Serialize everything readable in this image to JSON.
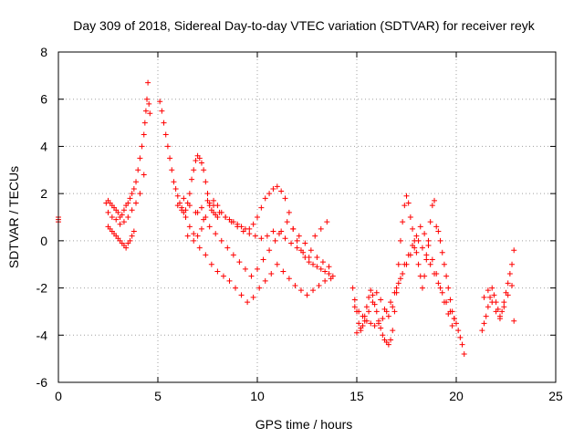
{
  "chart_data": {
    "type": "scatter",
    "title": "Day 309 of 2018, Sidereal Day-to-day VTEC variation (SDTVAR) for receiver reyk",
    "xlabel": "GPS time / hours",
    "ylabel": "SDTVAR / TECUs",
    "xlim": [
      0,
      25
    ],
    "ylim": [
      -6,
      8
    ],
    "x_ticks": [
      0,
      5,
      10,
      15,
      20,
      25
    ],
    "x_tick_labels": [
      "0",
      "5",
      "10",
      "15",
      "20",
      "25"
    ],
    "y_ticks": [
      -6,
      -4,
      -2,
      0,
      2,
      4,
      6,
      8
    ],
    "y_tick_labels": [
      "-6",
      "-4",
      "-2",
      "0",
      "2",
      "4",
      "6",
      "8"
    ],
    "grid": true,
    "marker": "+",
    "color": "#ff0000",
    "series": [
      {
        "name": "SDTVAR",
        "x": [
          0.0,
          0.0,
          0.0,
          2.4,
          2.5,
          2.6,
          2.7,
          2.8,
          2.9,
          3.0,
          3.1,
          3.2,
          3.3,
          3.4,
          3.5,
          3.6,
          3.7,
          3.8,
          3.9,
          4.0,
          4.1,
          4.2,
          4.3,
          4.35,
          4.4,
          4.45,
          4.5,
          4.55,
          4.6,
          2.5,
          2.6,
          2.7,
          2.8,
          2.9,
          3.0,
          3.1,
          3.2,
          3.3,
          3.4,
          3.5,
          3.6,
          3.7,
          3.8,
          2.5,
          2.7,
          2.9,
          3.1,
          3.3,
          3.5,
          3.7,
          3.9,
          4.1,
          4.3,
          5.1,
          5.2,
          5.3,
          5.4,
          5.5,
          5.6,
          5.7,
          5.8,
          5.9,
          6.0,
          6.1,
          6.2,
          6.3,
          6.4,
          6.5,
          6.6,
          6.7,
          6.8,
          6.9,
          7.0,
          7.1,
          7.2,
          7.3,
          7.4,
          7.5,
          7.6,
          7.7,
          7.8,
          7.9,
          8.0,
          6.0,
          6.2,
          6.4,
          6.6,
          6.8,
          7.0,
          7.2,
          7.4,
          7.6,
          7.8,
          8.0,
          8.2,
          8.4,
          8.6,
          8.8,
          9.0,
          9.2,
          9.4,
          9.6,
          9.8,
          10.0,
          10.2,
          10.4,
          10.6,
          10.8,
          11.0,
          11.2,
          11.4,
          11.6,
          11.8,
          12.0,
          12.2,
          12.4,
          12.6,
          12.8,
          13.0,
          13.2,
          13.4,
          13.6,
          13.8,
          6.5,
          6.8,
          7.1,
          7.4,
          7.7,
          8.0,
          8.3,
          8.6,
          8.9,
          9.2,
          9.5,
          9.8,
          10.1,
          10.4,
          10.7,
          11.0,
          11.3,
          11.6,
          11.9,
          12.2,
          12.5,
          12.8,
          13.1,
          13.4,
          13.7,
          7.0,
          7.3,
          7.6,
          7.9,
          8.2,
          8.5,
          8.8,
          9.1,
          9.4,
          9.7,
          10.0,
          10.3,
          10.6,
          10.9,
          11.2,
          11.5,
          11.8,
          12.1,
          12.4,
          12.7,
          13.0,
          13.3,
          13.6,
          6.3,
          6.6,
          6.9,
          7.2,
          7.5,
          7.8,
          8.1,
          8.4,
          8.7,
          9.0,
          9.3,
          9.6,
          9.9,
          10.2,
          10.5,
          10.8,
          11.1,
          11.4,
          11.7,
          12.0,
          12.3,
          12.6,
          12.9,
          13.2,
          13.5,
          14.8,
          14.9,
          15.0,
          15.1,
          15.2,
          15.3,
          15.4,
          15.5,
          15.6,
          15.7,
          15.8,
          15.9,
          16.0,
          16.1,
          16.2,
          16.3,
          16.4,
          16.5,
          16.6,
          16.7,
          16.8,
          16.9,
          17.0,
          17.1,
          17.2,
          17.3,
          17.4,
          17.5,
          17.6,
          17.7,
          17.8,
          17.9,
          18.0,
          18.1,
          18.2,
          18.3,
          18.4,
          18.5,
          18.6,
          18.7,
          18.8,
          18.9,
          19.0,
          19.1,
          19.2,
          19.3,
          19.4,
          19.5,
          19.6,
          19.7,
          19.8,
          19.9,
          20.0,
          20.1,
          20.2,
          20.3,
          20.4,
          14.9,
          15.1,
          15.3,
          15.5,
          15.7,
          15.9,
          16.1,
          16.3,
          16.5,
          16.7,
          16.9,
          17.1,
          17.3,
          17.5,
          17.7,
          17.9,
          18.1,
          18.3,
          18.5,
          18.7,
          18.9,
          19.1,
          19.3,
          19.5,
          19.7,
          19.9,
          15.0,
          15.2,
          15.4,
          15.6,
          15.8,
          16.0,
          16.2,
          16.4,
          16.6,
          16.8,
          17.0,
          17.2,
          17.4,
          17.6,
          17.8,
          18.0,
          18.2,
          18.4,
          18.6,
          18.8,
          19.0,
          19.2,
          19.4,
          19.6,
          19.8,
          21.3,
          21.4,
          21.5,
          21.6,
          21.7,
          21.8,
          21.9,
          22.0,
          22.1,
          22.2,
          22.3,
          22.4,
          22.5,
          22.6,
          22.7,
          22.8,
          22.9,
          21.4,
          21.6,
          21.8,
          22.0,
          22.2,
          22.4,
          22.6,
          22.8,
          22.9
        ],
        "y": [
          0.8,
          1.0,
          0.9,
          1.6,
          1.7,
          1.6,
          1.5,
          1.4,
          1.3,
          1.2,
          1.0,
          1.1,
          1.3,
          1.5,
          1.6,
          1.8,
          2.0,
          2.2,
          2.5,
          3.0,
          3.5,
          4.0,
          4.5,
          5.0,
          5.5,
          6.0,
          6.7,
          5.8,
          5.4,
          0.6,
          0.5,
          0.4,
          0.3,
          0.2,
          0.1,
          0.0,
          -0.1,
          -0.2,
          -0.3,
          -0.1,
          0.0,
          0.2,
          0.4,
          1.2,
          1.0,
          0.9,
          0.7,
          0.8,
          1.0,
          1.3,
          1.6,
          2.0,
          2.8,
          5.9,
          5.5,
          5.0,
          4.5,
          4.0,
          3.5,
          3.0,
          2.5,
          2.2,
          1.9,
          1.6,
          1.4,
          1.2,
          1.3,
          1.6,
          2.0,
          2.6,
          3.0,
          3.4,
          3.6,
          3.5,
          3.3,
          3.0,
          2.5,
          2.0,
          1.6,
          1.3,
          1.2,
          1.1,
          1.0,
          1.5,
          1.3,
          1.0,
          0.6,
          0.3,
          0.2,
          0.5,
          1.0,
          1.5,
          1.7,
          1.5,
          1.2,
          1.0,
          0.9,
          0.8,
          0.7,
          0.6,
          0.5,
          0.5,
          0.7,
          1.0,
          1.4,
          1.8,
          2.0,
          2.2,
          2.3,
          2.1,
          1.8,
          1.2,
          0.5,
          0.0,
          -0.4,
          -0.7,
          -0.9,
          -1.0,
          -1.1,
          -1.2,
          -1.3,
          -1.4,
          -1.5,
          0.2,
          0.0,
          -0.3,
          -0.6,
          -1.0,
          -1.3,
          -1.5,
          -1.7,
          -2.0,
          -2.3,
          -2.6,
          -2.4,
          -2.0,
          -1.7,
          -1.4,
          -1.0,
          -1.3,
          -1.6,
          -1.9,
          -2.1,
          -2.3,
          -2.1,
          -1.9,
          -1.7,
          -1.6,
          1.2,
          0.9,
          0.6,
          0.3,
          0.0,
          -0.3,
          -0.6,
          -0.9,
          -1.2,
          -1.5,
          -1.2,
          -0.8,
          -0.4,
          0.0,
          0.4,
          0.8,
          0.5,
          0.2,
          -0.1,
          -0.4,
          -0.7,
          -0.9,
          -1.1,
          1.8,
          1.5,
          1.2,
          1.4,
          1.7,
          1.5,
          1.2,
          1.0,
          0.8,
          0.6,
          0.4,
          0.3,
          0.2,
          0.1,
          0.2,
          0.4,
          0.3,
          0.1,
          -0.1,
          -0.3,
          -0.5,
          -0.7,
          0.2,
          0.5,
          0.8,
          -2.0,
          -2.5,
          -3.0,
          -3.5,
          -3.8,
          -3.6,
          -3.2,
          -2.8,
          -2.4,
          -2.1,
          -2.3,
          -2.7,
          -3.0,
          -3.4,
          -3.7,
          -4.0,
          -4.2,
          -4.3,
          -4.4,
          -4.2,
          -3.8,
          -3.0,
          -2.0,
          -1.0,
          0.0,
          0.8,
          1.5,
          1.9,
          1.6,
          1.0,
          0.5,
          0.0,
          -0.5,
          -1.0,
          -1.5,
          -2.0,
          -1.5,
          -0.8,
          0.0,
          0.8,
          1.5,
          1.7,
          0.6,
          0.4,
          0.0,
          -0.5,
          -1.0,
          -1.5,
          -2.0,
          -2.5,
          -3.0,
          -3.3,
          -3.5,
          -3.8,
          -4.1,
          -4.4,
          -4.8,
          -2.8,
          -3.0,
          -3.2,
          -3.4,
          -3.5,
          -3.6,
          -3.5,
          -3.3,
          -3.0,
          -2.6,
          -2.2,
          -1.8,
          -1.4,
          -1.0,
          -0.6,
          -0.3,
          0.0,
          -0.3,
          -0.6,
          -1.0,
          -1.4,
          -1.8,
          -2.2,
          -2.6,
          -3.0,
          -3.3,
          -3.9,
          -3.7,
          -3.4,
          -3.0,
          -2.6,
          -2.2,
          -2.5,
          -2.9,
          -3.2,
          -2.8,
          -2.2,
          -1.6,
          -1.0,
          -0.6,
          -0.2,
          0.2,
          0.6,
          0.3,
          -0.2,
          -0.8,
          -1.4,
          -2.0,
          -2.6,
          -3.1,
          -3.6,
          -3.8,
          -3.5,
          -3.2,
          -2.8,
          -2.4,
          -2.0,
          -2.3,
          -2.6,
          -2.9,
          -3.2,
          -3.0,
          -2.6,
          -2.2,
          -1.8,
          -1.4,
          -1.0,
          -0.4,
          -2.4,
          -2.1,
          -2.6,
          -3.0,
          -3.3,
          -2.8,
          -2.3,
          -1.9,
          -3.4
        ]
      }
    ]
  }
}
